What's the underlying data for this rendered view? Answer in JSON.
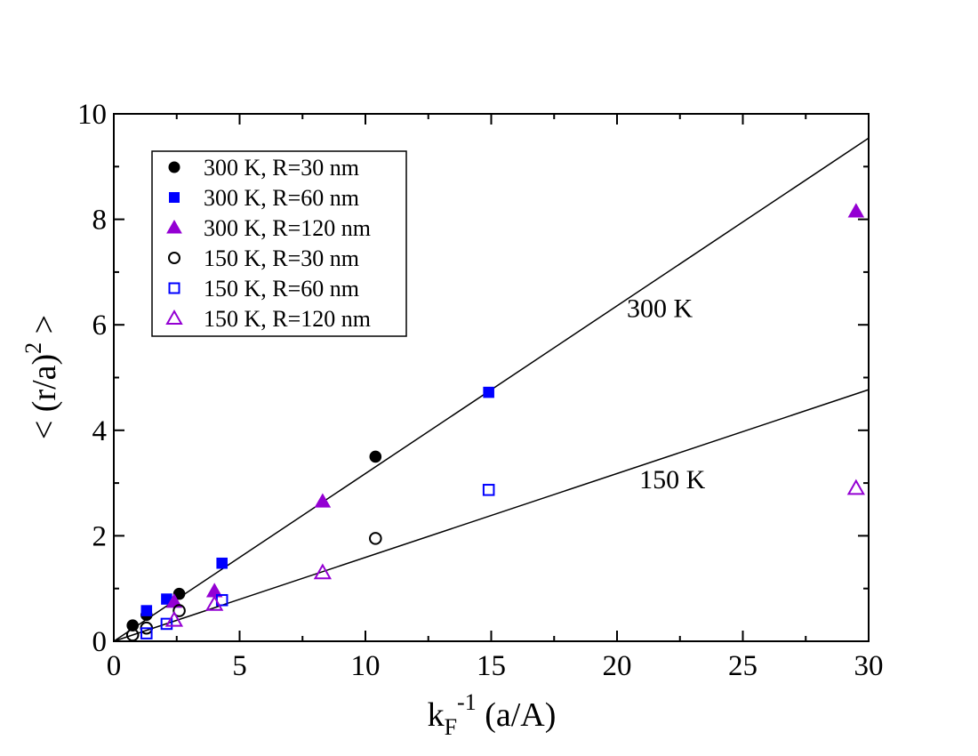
{
  "chart_data": {
    "type": "scatter",
    "xlim": [
      0,
      30
    ],
    "ylim": [
      0,
      10
    ],
    "xticks": [
      0,
      5,
      10,
      15,
      20,
      25,
      30
    ],
    "yticks": [
      0,
      2,
      4,
      6,
      8,
      10
    ],
    "xlabel": {
      "main": "k",
      "sub": "F",
      "sup": "-1",
      "rest": " (a/A)"
    },
    "ylabel": {
      "main": "< (r/a)",
      "sup": "2",
      "rest": " >"
    },
    "grid": false,
    "legend_position": "top-left",
    "colors": {
      "black": "#000000",
      "blue": "#0000ff",
      "purple": "#9400d3"
    },
    "series": [
      {
        "name": "300 K, R=30 nm",
        "marker": "circle",
        "filled": true,
        "color": "#000000",
        "points": [
          [
            0.75,
            0.3
          ],
          [
            1.3,
            0.5
          ],
          [
            2.6,
            0.9
          ],
          [
            10.4,
            3.5
          ]
        ]
      },
      {
        "name": "300 K, R=60 nm",
        "marker": "square",
        "filled": true,
        "color": "#0000ff",
        "points": [
          [
            1.3,
            0.58
          ],
          [
            2.1,
            0.8
          ],
          [
            4.3,
            1.48
          ],
          [
            14.9,
            4.72
          ]
        ]
      },
      {
        "name": "300 K, R=120 nm",
        "marker": "triangle",
        "filled": true,
        "color": "#9400d3",
        "points": [
          [
            2.4,
            0.75
          ],
          [
            4.0,
            0.95
          ],
          [
            8.3,
            2.65
          ],
          [
            29.5,
            8.15
          ]
        ]
      },
      {
        "name": "150 K, R=30 nm",
        "marker": "circle",
        "filled": false,
        "color": "#000000",
        "points": [
          [
            0.75,
            0.12
          ],
          [
            1.3,
            0.25
          ],
          [
            2.6,
            0.58
          ],
          [
            10.4,
            1.95
          ]
        ]
      },
      {
        "name": "150 K, R=60 nm",
        "marker": "square",
        "filled": false,
        "color": "#0000ff",
        "points": [
          [
            1.3,
            0.15
          ],
          [
            2.1,
            0.33
          ],
          [
            4.3,
            0.78
          ],
          [
            14.9,
            2.87
          ]
        ]
      },
      {
        "name": "150 K, R=120 nm",
        "marker": "triangle",
        "filled": false,
        "color": "#9400d3",
        "points": [
          [
            2.4,
            0.4
          ],
          [
            4.0,
            0.7
          ],
          [
            8.3,
            1.3
          ],
          [
            29.5,
            2.9
          ]
        ]
      }
    ],
    "fit_lines": [
      {
        "label": "300 K",
        "slope": 0.318,
        "label_at": [
          21.7,
          6.15
        ]
      },
      {
        "label": "150 K",
        "slope": 0.159,
        "label_at": [
          22.2,
          2.9
        ]
      }
    ]
  }
}
